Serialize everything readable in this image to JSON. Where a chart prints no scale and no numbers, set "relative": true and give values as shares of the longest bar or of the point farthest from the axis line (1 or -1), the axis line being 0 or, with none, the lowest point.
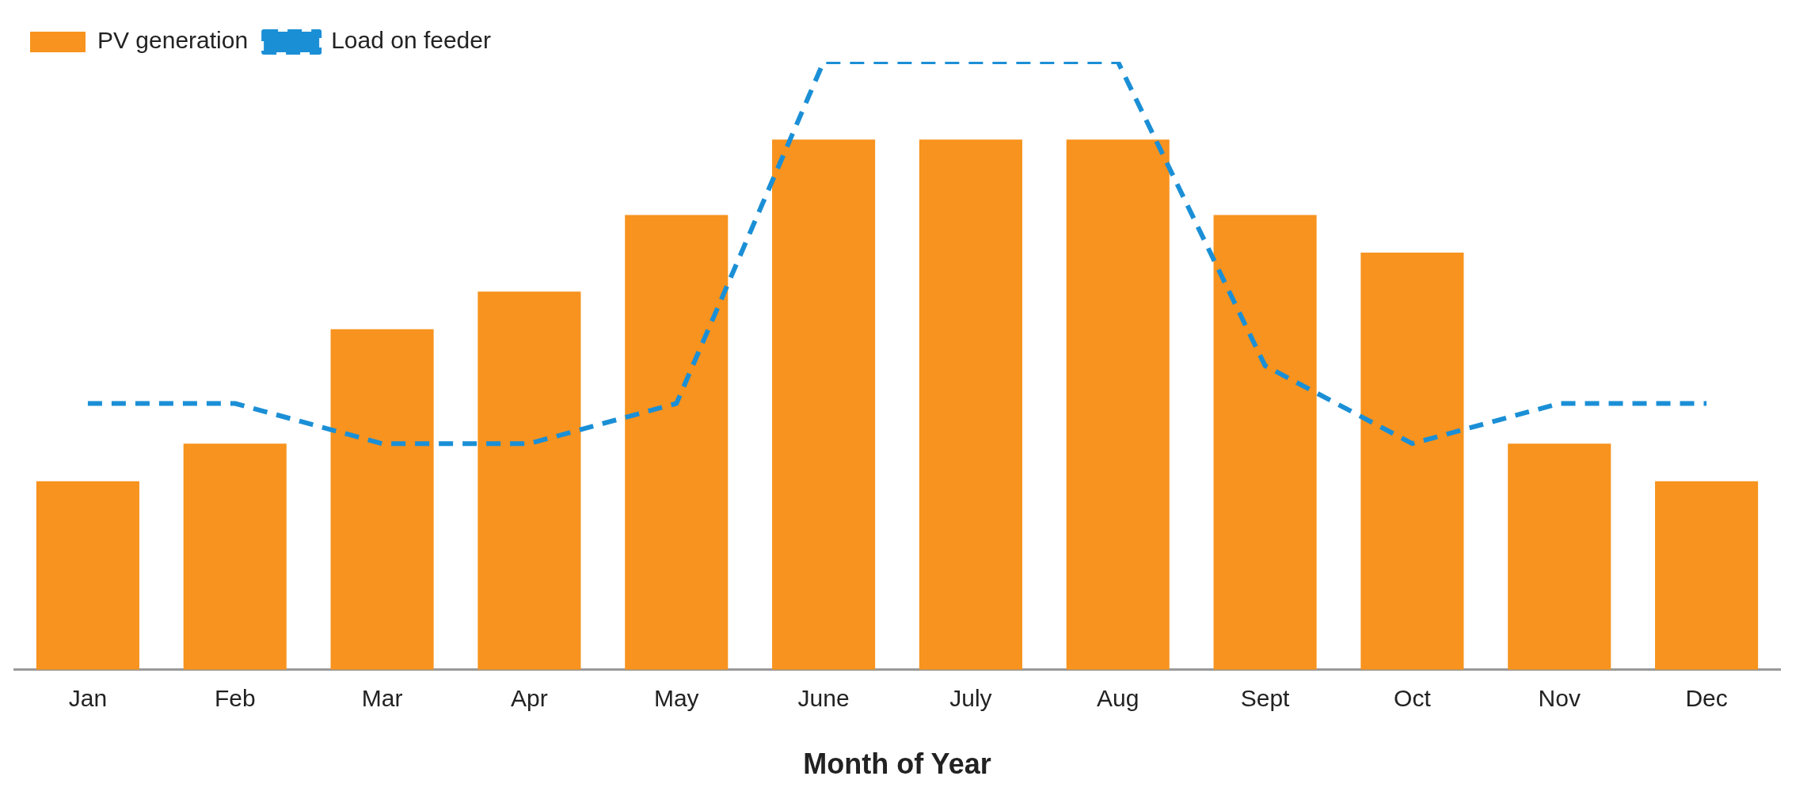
{
  "chart_data": {
    "type": "bar",
    "relative": true,
    "xlabel": "Month of Year",
    "categories": [
      "Jan",
      "Feb",
      "Mar",
      "Apr",
      "May",
      "June",
      "July",
      "Aug",
      "Sept",
      "Oct",
      "Nov",
      "Dec"
    ],
    "legend": "top left",
    "grid": false,
    "series": [
      {
        "name": "PV generation",
        "color": "#f7931e",
        "values": [
          0.31,
          0.372,
          0.56,
          0.622,
          0.748,
          0.872,
          0.872,
          0.872,
          0.748,
          0.686,
          0.372,
          0.31
        ]
      },
      {
        "name": "Load on feeder",
        "type": "line",
        "line_style": "dashed",
        "color": "#1b8fd6",
        "values": [
          0.438,
          0.438,
          0.372,
          0.372,
          0.438,
          1,
          1,
          1,
          0.5,
          0.372,
          0.438,
          0.438
        ]
      }
    ]
  }
}
